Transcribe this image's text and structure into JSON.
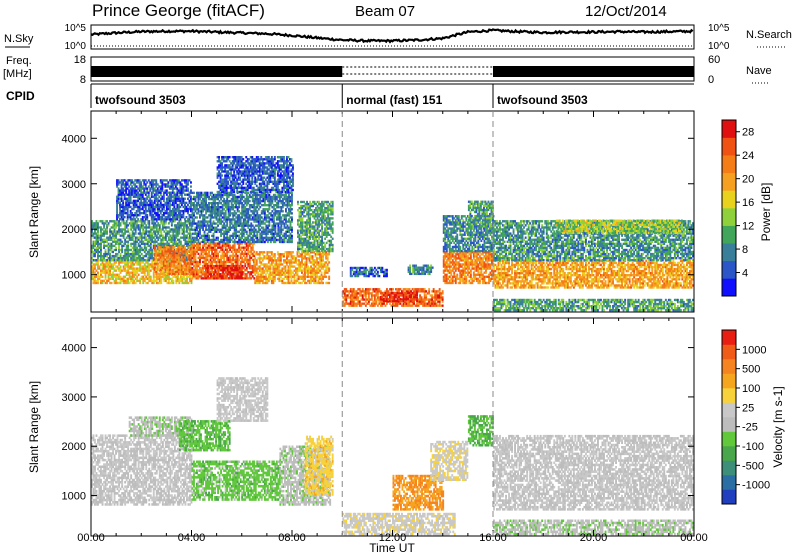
{
  "header": {
    "station": "Prince George (fitACF)",
    "beam": "Beam 07",
    "date": "12/Oct/2014"
  },
  "chart_data": [
    {
      "type": "line",
      "name": "noise",
      "left_label": "N.Sky",
      "right_label": "N.Search",
      "left_ticks": [
        "10^5",
        "10^0"
      ],
      "right_ticks": [
        "10^5",
        "10^0"
      ],
      "x": [
        0,
        1,
        2,
        3,
        4,
        5,
        6,
        7,
        8,
        9,
        10,
        11,
        12,
        13,
        14,
        15,
        16,
        17,
        18,
        19,
        20,
        21,
        22,
        23,
        24
      ],
      "sky_log": [
        3.2,
        3.6,
        3.9,
        4.0,
        4.0,
        3.8,
        3.6,
        3.4,
        3.0,
        2.4,
        1.9,
        1.7,
        1.7,
        1.9,
        2.3,
        3.8,
        4.2,
        3.9,
        3.7,
        3.8,
        3.8,
        3.9,
        3.8,
        3.9,
        4.0
      ],
      "search_style": "dotted"
    },
    {
      "type": "area",
      "name": "frequency",
      "left_label_1": "Freq.",
      "left_label_2": "[MHz]",
      "right_label": "Nave",
      "left_ticks": [
        "18",
        "8"
      ],
      "right_ticks": [
        "60",
        "0"
      ],
      "segments": [
        {
          "start": 0,
          "end": 10,
          "mode": "solid"
        },
        {
          "start": 10,
          "end": 16,
          "mode": "dotted"
        },
        {
          "start": 16,
          "end": 24,
          "mode": "solid"
        }
      ],
      "nave_style": "dotted"
    },
    {
      "type": "table",
      "name": "cpid",
      "label": "CPID",
      "segments": [
        {
          "start": 0,
          "end": 10,
          "label": "twofsound 3503"
        },
        {
          "start": 10,
          "end": 16,
          "label": "normal (fast) 151"
        },
        {
          "start": 16,
          "end": 24,
          "label": "twofsound 3503"
        }
      ]
    },
    {
      "type": "heatmap",
      "name": "power",
      "ylabel": "Slant Range [km]",
      "ylim": [
        180,
        4600
      ],
      "yticks": [
        1000,
        2000,
        3000,
        4000
      ],
      "colorbar_label": "Power [dB]",
      "colorbar_ticks": [
        4,
        8,
        12,
        16,
        20,
        24,
        28
      ],
      "colorbar_colors": [
        "#1010ff",
        "#2a56c8",
        "#3a7f9a",
        "#41a55a",
        "#8ed13a",
        "#e8d21e",
        "#f5a020",
        "#f57d18",
        "#f05214",
        "#e01010"
      ],
      "colorbar_range": [
        0,
        30
      ],
      "regions": [
        {
          "t0": 0.0,
          "t1": 4.0,
          "r0": 800,
          "r1": 1300,
          "v": 18
        },
        {
          "t0": 0.0,
          "t1": 4.0,
          "r0": 1300,
          "r1": 2200,
          "v": 9
        },
        {
          "t0": 1.0,
          "t1": 4.0,
          "r0": 2200,
          "r1": 3100,
          "v": 5
        },
        {
          "t0": 2.5,
          "t1": 4.0,
          "r0": 1000,
          "r1": 1600,
          "v": 22
        },
        {
          "t0": 4.0,
          "t1": 6.5,
          "r0": 900,
          "r1": 1700,
          "v": 24
        },
        {
          "t0": 4.5,
          "t1": 6.0,
          "r0": 900,
          "r1": 1200,
          "v": 28
        },
        {
          "t0": 4.0,
          "t1": 8.0,
          "r0": 1700,
          "r1": 2800,
          "v": 7
        },
        {
          "t0": 5.0,
          "t1": 8.0,
          "r0": 2800,
          "r1": 3600,
          "v": 5
        },
        {
          "t0": 6.5,
          "t1": 9.5,
          "r0": 800,
          "r1": 1500,
          "v": 20
        },
        {
          "t0": 8.2,
          "t1": 9.6,
          "r0": 1500,
          "r1": 2600,
          "v": 10
        },
        {
          "t0": 10.0,
          "t1": 14.0,
          "r0": 300,
          "r1": 700,
          "v": 24
        },
        {
          "t0": 11.5,
          "t1": 13.0,
          "r0": 400,
          "r1": 600,
          "v": 28
        },
        {
          "t0": 10.3,
          "t1": 11.8,
          "r0": 950,
          "r1": 1150,
          "v": 6
        },
        {
          "t0": 12.6,
          "t1": 13.6,
          "r0": 1000,
          "r1": 1200,
          "v": 8
        },
        {
          "t0": 14.0,
          "t1": 16.0,
          "r0": 800,
          "r1": 1500,
          "v": 22
        },
        {
          "t0": 14.0,
          "t1": 16.0,
          "r0": 1500,
          "r1": 2300,
          "v": 8
        },
        {
          "t0": 15.0,
          "t1": 16.0,
          "r0": 2000,
          "r1": 2600,
          "v": 10
        },
        {
          "t0": 16.0,
          "t1": 24.0,
          "r0": 700,
          "r1": 1300,
          "v": 20
        },
        {
          "t0": 16.0,
          "t1": 24.0,
          "r0": 1300,
          "r1": 2200,
          "v": 9
        },
        {
          "t0": 18.5,
          "t1": 23.5,
          "r0": 1900,
          "r1": 2200,
          "v": 14
        },
        {
          "t0": 16.0,
          "t1": 24.0,
          "r0": 200,
          "r1": 450,
          "v": 10
        }
      ]
    },
    {
      "type": "heatmap",
      "name": "velocity",
      "ylabel": "Slant Range [km]",
      "ylim": [
        180,
        4600
      ],
      "yticks": [
        1000,
        2000,
        3000,
        4000
      ],
      "xlabel": "Time UT",
      "xticks": [
        "00:00",
        "04:00",
        "08:00",
        "12:00",
        "16:00",
        "20:00",
        "00:00"
      ],
      "colorbar_label": "Velocity [m s-1]",
      "colorbar_ticks": [
        1000,
        500,
        100,
        25,
        -25,
        -100,
        -500,
        -1000
      ],
      "colorbar_colors": [
        "#1f3fbf",
        "#2a6ea3",
        "#3d8f7a",
        "#49a64a",
        "#61c83c",
        "#bdbdbd",
        "#c8c8c8",
        "#f7d23b",
        "#f6a51f",
        "#f58420",
        "#f05c18",
        "#e81e12"
      ],
      "colorbar_range": [
        -1200,
        1200
      ],
      "regions": [
        {
          "t0": 0.0,
          "t1": 4.0,
          "r0": 800,
          "r1": 2200,
          "v": 0
        },
        {
          "t0": 1.5,
          "t1": 4.0,
          "r0": 2200,
          "r1": 2600,
          "v": -150
        },
        {
          "t0": 3.5,
          "t1": 5.5,
          "r0": 1900,
          "r1": 2500,
          "v": -350
        },
        {
          "t0": 4.0,
          "t1": 7.5,
          "r0": 900,
          "r1": 1700,
          "v": -300
        },
        {
          "t0": 5.0,
          "t1": 7.0,
          "r0": 2500,
          "r1": 3400,
          "v": 60
        },
        {
          "t0": 7.5,
          "t1": 9.5,
          "r0": 800,
          "r1": 2000,
          "v": -120
        },
        {
          "t0": 8.5,
          "t1": 9.6,
          "r0": 1000,
          "r1": 2200,
          "v": 300
        },
        {
          "t0": 10.0,
          "t1": 14.5,
          "r0": 200,
          "r1": 650,
          "v": 120
        },
        {
          "t0": 12.0,
          "t1": 14.0,
          "r0": 700,
          "r1": 1400,
          "v": 600
        },
        {
          "t0": 13.5,
          "t1": 15.0,
          "r0": 1300,
          "r1": 2100,
          "v": 160
        },
        {
          "t0": 15.0,
          "t1": 16.0,
          "r0": 2000,
          "r1": 2600,
          "v": -400
        },
        {
          "t0": 16.0,
          "t1": 24.0,
          "r0": 700,
          "r1": 2200,
          "v": 0
        },
        {
          "t0": 16.0,
          "t1": 24.0,
          "r0": 200,
          "r1": 500,
          "v": -140
        }
      ]
    }
  ]
}
